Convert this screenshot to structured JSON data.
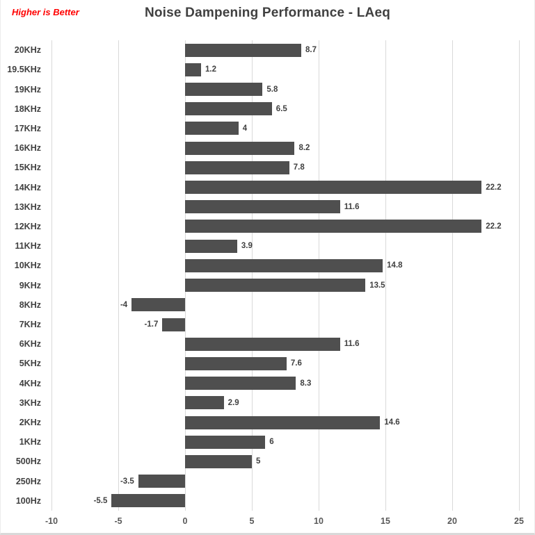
{
  "annotation": {
    "text": "Higher is Better",
    "color": "#ff0000"
  },
  "title": "Noise Dampening Performance - LAeq",
  "chart_data": {
    "type": "bar",
    "orientation": "horizontal",
    "title": "Noise Dampening Performance - LAeq",
    "categories": [
      "20KHz",
      "19.5KHz",
      "19KHz",
      "18KHz",
      "17KHz",
      "16KHz",
      "15KHz",
      "14KHz",
      "13KHz",
      "12KHz",
      "11KHz",
      "10KHz",
      "9KHz",
      "8KHz",
      "7KHz",
      "6KHz",
      "5KHz",
      "4KHz",
      "3KHz",
      "2KHz",
      "1KHz",
      "500Hz",
      "250Hz",
      "100Hz"
    ],
    "values": [
      8.7,
      1.2,
      5.8,
      6.5,
      4,
      8.2,
      7.8,
      22.2,
      11.6,
      22.2,
      3.9,
      14.8,
      13.5,
      -4,
      -1.7,
      11.6,
      7.6,
      8.3,
      2.9,
      14.6,
      6,
      5,
      -3.5,
      -5.5
    ],
    "value_labels": [
      "8.7",
      "1.2",
      "5.8",
      "6.5",
      "4",
      "8.2",
      "7.8",
      "22.2",
      "11.6",
      "22.2",
      "3.9",
      "14.8",
      "13.5",
      "-4",
      "-1.7",
      "11.6",
      "7.6",
      "8.3",
      "2.9",
      "14.6",
      "6",
      "5",
      "-3.5",
      "-5.5"
    ],
    "x_ticks": [
      "-10",
      "-5",
      "0",
      "5",
      "10",
      "15",
      "20",
      "25"
    ],
    "x_tick_values": [
      -10,
      -5,
      0,
      5,
      10,
      15,
      20,
      25
    ],
    "xlim": [
      -10,
      25
    ],
    "xlabel": "",
    "ylabel": "",
    "grid": "vertical",
    "legend": "none",
    "bar_color": "#4f4f4f",
    "gridline_color": "#d9d9d9"
  }
}
